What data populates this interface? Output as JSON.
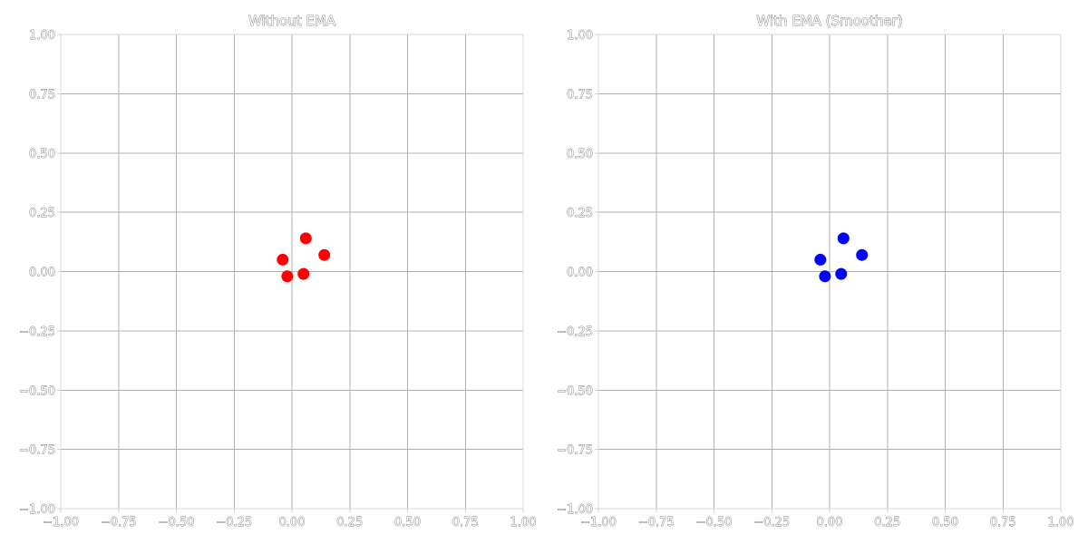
{
  "chart_data": [
    {
      "type": "scatter",
      "title": "Without EMA",
      "xlabel": "",
      "ylabel": "",
      "xlim": [
        -1.0,
        1.0
      ],
      "ylim": [
        -1.0,
        1.0
      ],
      "grid": true,
      "xticks": [
        "−1.00",
        "−0.75",
        "−0.50",
        "−0.25",
        "0.00",
        "0.25",
        "0.50",
        "0.75",
        "1.00"
      ],
      "yticks": [
        "1.00",
        "0.75",
        "0.50",
        "0.25",
        "0.00",
        "−0.25",
        "−0.50",
        "−0.75",
        "−1.00"
      ],
      "series": [
        {
          "color": "#ff0000",
          "points": [
            {
              "x": -0.04,
              "y": 0.05
            },
            {
              "x": 0.06,
              "y": 0.14
            },
            {
              "x": 0.14,
              "y": 0.07
            },
            {
              "x": -0.02,
              "y": -0.02
            },
            {
              "x": 0.05,
              "y": -0.01
            }
          ]
        }
      ]
    },
    {
      "type": "scatter",
      "title": "With EMA (Smoother)",
      "xlabel": "",
      "ylabel": "",
      "xlim": [
        -1.0,
        1.0
      ],
      "ylim": [
        -1.0,
        1.0
      ],
      "grid": true,
      "xticks": [
        "−1.00",
        "−0.75",
        "−0.50",
        "−0.25",
        "0.00",
        "0.25",
        "0.50",
        "0.75",
        "1.00"
      ],
      "yticks": [
        "1.00",
        "0.75",
        "0.50",
        "0.25",
        "0.00",
        "−0.25",
        "−0.50",
        "−0.75",
        "−1.00"
      ],
      "series": [
        {
          "color": "#0000ff",
          "points": [
            {
              "x": -0.04,
              "y": 0.05
            },
            {
              "x": 0.06,
              "y": 0.14
            },
            {
              "x": 0.14,
              "y": 0.07
            },
            {
              "x": -0.02,
              "y": -0.02
            },
            {
              "x": 0.05,
              "y": -0.01
            }
          ]
        }
      ]
    }
  ]
}
